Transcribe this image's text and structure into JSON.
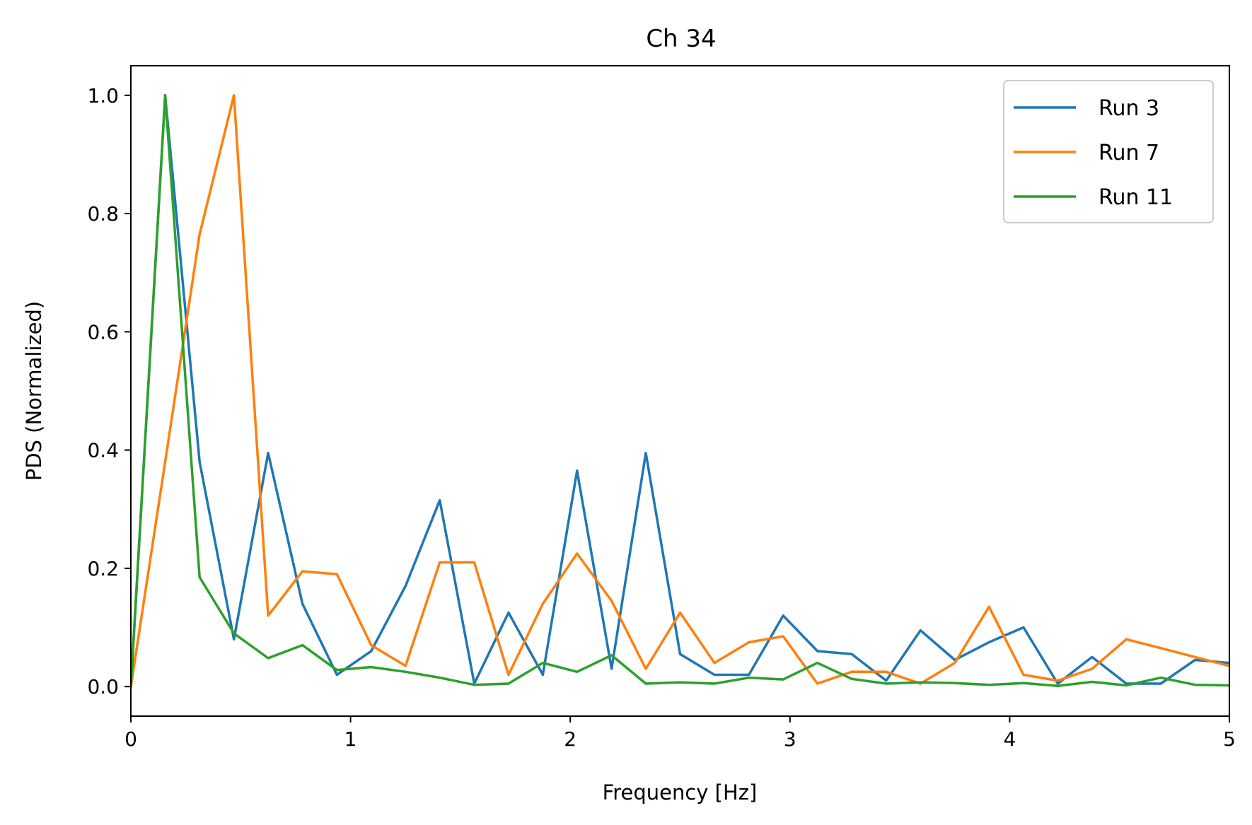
{
  "chart_data": {
    "type": "line",
    "title": "Ch 34",
    "xlabel": "Frequency [Hz]",
    "ylabel": "PDS (Normalized)",
    "xlim": [
      0,
      5
    ],
    "ylim": [
      -0.05,
      1.05
    ],
    "xticks": [
      0,
      1,
      2,
      3,
      4,
      5
    ],
    "xtick_labels": [
      "0",
      "1",
      "2",
      "3",
      "4",
      "5"
    ],
    "yticks": [
      0.0,
      0.2,
      0.4,
      0.6,
      0.8,
      1.0
    ],
    "ytick_labels": [
      "0.0",
      "0.2",
      "0.4",
      "0.6",
      "0.8",
      "1.0"
    ],
    "grid": false,
    "legend_position": "top-right",
    "x": [
      0,
      0.156,
      0.313,
      0.469,
      0.625,
      0.781,
      0.938,
      1.094,
      1.25,
      1.406,
      1.563,
      1.719,
      1.875,
      2.031,
      2.188,
      2.344,
      2.5,
      2.656,
      2.813,
      2.969,
      3.125,
      3.281,
      3.438,
      3.594,
      3.75,
      3.906,
      4.063,
      4.219,
      4.375,
      4.531,
      4.688,
      4.844,
      5.0
    ],
    "series": [
      {
        "name": "Run 3",
        "color": "#1f77b4",
        "values": [
          0.0,
          1.0,
          0.38,
          0.08,
          0.395,
          0.14,
          0.02,
          0.06,
          0.17,
          0.315,
          0.005,
          0.125,
          0.02,
          0.365,
          0.03,
          0.395,
          0.055,
          0.02,
          0.02,
          0.12,
          0.06,
          0.055,
          0.01,
          0.095,
          0.045,
          0.075,
          0.1,
          0.005,
          0.05,
          0.005,
          0.005,
          0.045,
          0.04
        ]
      },
      {
        "name": "Run 7",
        "color": "#ff7f0e",
        "values": [
          0.0,
          0.38,
          0.765,
          1.0,
          0.12,
          0.195,
          0.19,
          0.07,
          0.035,
          0.21,
          0.21,
          0.02,
          0.14,
          0.225,
          0.145,
          0.03,
          0.125,
          0.04,
          0.075,
          0.085,
          0.005,
          0.025,
          0.025,
          0.005,
          0.04,
          0.135,
          0.02,
          0.01,
          0.03,
          0.08,
          0.065,
          0.05,
          0.035
        ]
      },
      {
        "name": "Run 11",
        "color": "#2ca02c",
        "values": [
          0.0,
          1.0,
          0.185,
          0.09,
          0.048,
          0.07,
          0.028,
          0.033,
          0.025,
          0.015,
          0.003,
          0.005,
          0.04,
          0.025,
          0.053,
          0.005,
          0.007,
          0.005,
          0.015,
          0.012,
          0.04,
          0.013,
          0.005,
          0.007,
          0.006,
          0.003,
          0.006,
          0.001,
          0.008,
          0.002,
          0.015,
          0.003,
          0.002
        ]
      }
    ]
  }
}
